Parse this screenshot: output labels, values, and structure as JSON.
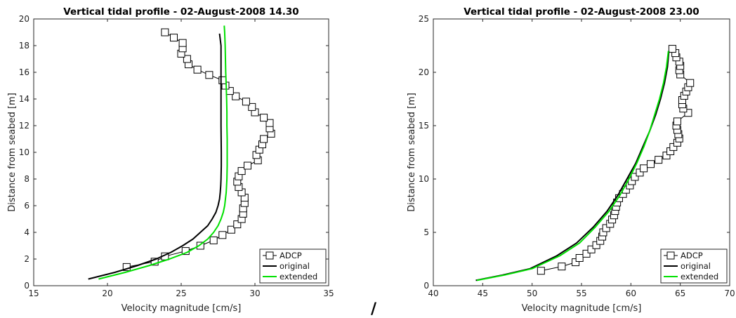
{
  "chart_data": [
    {
      "type": "line",
      "title": "Vertical tidal profile - 02-August-2008 14.30",
      "xlabel": "Velocity magnitude [cm/s]",
      "ylabel": "Distance from seabed [m]",
      "xlim": [
        15,
        35
      ],
      "ylim": [
        0,
        20
      ],
      "xticks": [
        15,
        20,
        25,
        30,
        35
      ],
      "yticks": [
        0,
        2,
        4,
        6,
        8,
        10,
        12,
        14,
        16,
        18,
        20
      ],
      "grid": false,
      "legend_position": "bottom-right",
      "legend": [
        "ADCP",
        "original",
        "extended"
      ],
      "series": [
        {
          "name": "ADCP",
          "color": "#000000",
          "marker": "square",
          "points": [
            [
              21.3,
              1.4
            ],
            [
              23.2,
              1.8
            ],
            [
              23.9,
              2.2
            ],
            [
              25.3,
              2.6
            ],
            [
              26.3,
              3.0
            ],
            [
              27.2,
              3.4
            ],
            [
              27.8,
              3.8
            ],
            [
              28.4,
              4.2
            ],
            [
              28.8,
              4.6
            ],
            [
              29.1,
              5.0
            ],
            [
              29.2,
              5.4
            ],
            [
              29.2,
              5.8
            ],
            [
              29.3,
              6.2
            ],
            [
              29.3,
              6.6
            ],
            [
              29.1,
              7.0
            ],
            [
              28.9,
              7.4
            ],
            [
              28.8,
              7.8
            ],
            [
              28.9,
              8.2
            ],
            [
              29.1,
              8.6
            ],
            [
              29.5,
              9.0
            ],
            [
              30.2,
              9.4
            ],
            [
              30.1,
              9.8
            ],
            [
              30.3,
              10.2
            ],
            [
              30.5,
              10.6
            ],
            [
              30.6,
              11.0
            ],
            [
              31.1,
              11.4
            ],
            [
              31.0,
              11.8
            ],
            [
              31.0,
              12.2
            ],
            [
              30.6,
              12.6
            ],
            [
              30.0,
              13.0
            ],
            [
              29.8,
              13.4
            ],
            [
              29.4,
              13.8
            ],
            [
              28.7,
              14.2
            ],
            [
              28.3,
              14.6
            ],
            [
              28.0,
              15.0
            ],
            [
              27.8,
              15.4
            ],
            [
              26.9,
              15.8
            ],
            [
              26.1,
              16.2
            ],
            [
              25.5,
              16.6
            ],
            [
              25.4,
              17.0
            ],
            [
              25.0,
              17.4
            ],
            [
              25.1,
              17.8
            ],
            [
              25.1,
              18.2
            ],
            [
              24.5,
              18.6
            ],
            [
              23.9,
              19.0
            ]
          ]
        },
        {
          "name": "original",
          "color": "#000000",
          "points": [
            [
              18.7,
              0.5
            ],
            [
              20.5,
              1.0
            ],
            [
              22.0,
              1.5
            ],
            [
              23.3,
              2.0
            ],
            [
              24.3,
              2.5
            ],
            [
              25.1,
              3.0
            ],
            [
              25.8,
              3.5
            ],
            [
              26.3,
              4.0
            ],
            [
              26.8,
              4.5
            ],
            [
              27.1,
              5.0
            ],
            [
              27.35,
              5.5
            ],
            [
              27.5,
              6.0
            ],
            [
              27.6,
              6.5
            ],
            [
              27.65,
              7.0
            ],
            [
              27.68,
              7.5
            ],
            [
              27.7,
              8.0
            ],
            [
              27.72,
              9.0
            ],
            [
              27.72,
              10.0
            ],
            [
              27.71,
              11.0
            ],
            [
              27.7,
              12.0
            ],
            [
              27.7,
              13.0
            ],
            [
              27.7,
              14.0
            ],
            [
              27.7,
              15.0
            ],
            [
              27.7,
              16.0
            ],
            [
              27.7,
              17.0
            ],
            [
              27.7,
              18.0
            ],
            [
              27.6,
              18.9
            ]
          ]
        },
        {
          "name": "extended",
          "color": "#00e000",
          "points": [
            [
              19.4,
              0.5
            ],
            [
              21.2,
              1.0
            ],
            [
              22.8,
              1.5
            ],
            [
              24.2,
              2.0
            ],
            [
              25.4,
              2.5
            ],
            [
              26.2,
              3.0
            ],
            [
              26.8,
              3.5
            ],
            [
              27.2,
              4.0
            ],
            [
              27.5,
              4.5
            ],
            [
              27.7,
              5.0
            ],
            [
              27.85,
              5.5
            ],
            [
              27.95,
              6.0
            ],
            [
              28.0,
              6.5
            ],
            [
              28.05,
              7.0
            ],
            [
              28.1,
              8.0
            ],
            [
              28.12,
              9.0
            ],
            [
              28.12,
              10.0
            ],
            [
              28.12,
              11.0
            ],
            [
              28.1,
              12.0
            ],
            [
              28.1,
              13.0
            ],
            [
              28.08,
              14.0
            ],
            [
              28.05,
              15.0
            ],
            [
              28.02,
              16.0
            ],
            [
              28.0,
              17.0
            ],
            [
              27.98,
              18.0
            ],
            [
              27.95,
              19.0
            ],
            [
              27.92,
              19.5
            ]
          ]
        }
      ]
    },
    {
      "type": "line",
      "title": "Vertical tidal profile - 02-August-2008 23.00",
      "xlabel": "Velocity magnitude [cm/s]",
      "ylabel": "Distance from seabed [m]",
      "xlim": [
        40,
        70
      ],
      "ylim": [
        0,
        25
      ],
      "xticks": [
        40,
        45,
        50,
        55,
        60,
        65,
        70
      ],
      "yticks": [
        0,
        5,
        10,
        15,
        20,
        25
      ],
      "grid": false,
      "legend_position": "bottom-right",
      "legend": [
        "ADCP",
        "original",
        "extended"
      ],
      "series": [
        {
          "name": "ADCP",
          "color": "#000000",
          "marker": "square",
          "points": [
            [
              50.9,
              1.4
            ],
            [
              53.0,
              1.8
            ],
            [
              54.4,
              2.2
            ],
            [
              54.8,
              2.6
            ],
            [
              55.5,
              3.0
            ],
            [
              56.0,
              3.4
            ],
            [
              56.5,
              3.8
            ],
            [
              56.9,
              4.2
            ],
            [
              57.1,
              4.6
            ],
            [
              57.2,
              5.0
            ],
            [
              57.5,
              5.4
            ],
            [
              57.9,
              5.8
            ],
            [
              58.1,
              6.2
            ],
            [
              58.3,
              6.6
            ],
            [
              58.4,
              7.0
            ],
            [
              58.5,
              7.4
            ],
            [
              58.6,
              7.8
            ],
            [
              58.8,
              8.2
            ],
            [
              59.2,
              8.6
            ],
            [
              59.5,
              9.0
            ],
            [
              59.9,
              9.4
            ],
            [
              60.1,
              9.8
            ],
            [
              60.4,
              10.2
            ],
            [
              60.9,
              10.6
            ],
            [
              61.3,
              11.0
            ],
            [
              62.0,
              11.4
            ],
            [
              62.8,
              11.8
            ],
            [
              63.6,
              12.2
            ],
            [
              64.0,
              12.6
            ],
            [
              64.3,
              13.0
            ],
            [
              64.7,
              13.4
            ],
            [
              64.9,
              13.8
            ],
            [
              64.8,
              14.2
            ],
            [
              64.7,
              14.6
            ],
            [
              64.6,
              15.0
            ],
            [
              64.7,
              15.4
            ],
            [
              65.8,
              16.2
            ],
            [
              65.3,
              16.6
            ],
            [
              65.2,
              17.0
            ],
            [
              65.2,
              17.4
            ],
            [
              65.4,
              17.8
            ],
            [
              65.6,
              18.2
            ],
            [
              65.8,
              18.6
            ],
            [
              66.0,
              19.0
            ],
            [
              65.0,
              19.8
            ],
            [
              64.9,
              20.2
            ],
            [
              65.0,
              20.6
            ],
            [
              64.9,
              21.0
            ],
            [
              64.6,
              21.4
            ],
            [
              64.5,
              21.8
            ],
            [
              64.2,
              22.2
            ]
          ]
        },
        {
          "name": "original",
          "color": "#000000",
          "points": [
            [
              44.3,
              0.5
            ],
            [
              47.0,
              1.0
            ],
            [
              49.8,
              1.6
            ],
            [
              52.5,
              2.8
            ],
            [
              54.5,
              4.0
            ],
            [
              56.2,
              5.5
            ],
            [
              57.6,
              7.0
            ],
            [
              58.7,
              8.5
            ],
            [
              59.6,
              10.0
            ],
            [
              60.5,
              11.5
            ],
            [
              61.2,
              13.0
            ],
            [
              61.9,
              14.5
            ],
            [
              62.5,
              16.0
            ],
            [
              63.0,
              17.5
            ],
            [
              63.4,
              19.0
            ],
            [
              63.7,
              20.5
            ],
            [
              63.85,
              22.0
            ]
          ]
        },
        {
          "name": "extended",
          "color": "#00e000",
          "points": [
            [
              44.4,
              0.5
            ],
            [
              47.2,
              1.0
            ],
            [
              50.0,
              1.6
            ],
            [
              52.8,
              2.8
            ],
            [
              54.8,
              4.0
            ],
            [
              56.4,
              5.5
            ],
            [
              57.8,
              7.0
            ],
            [
              58.9,
              8.5
            ],
            [
              59.8,
              10.0
            ],
            [
              60.6,
              11.5
            ],
            [
              61.3,
              13.0
            ],
            [
              61.9,
              14.5
            ],
            [
              62.4,
              16.0
            ],
            [
              62.9,
              17.5
            ],
            [
              63.3,
              19.0
            ],
            [
              63.6,
              20.5
            ],
            [
              63.8,
              22.0
            ]
          ]
        }
      ]
    }
  ],
  "footer_mark": "/"
}
